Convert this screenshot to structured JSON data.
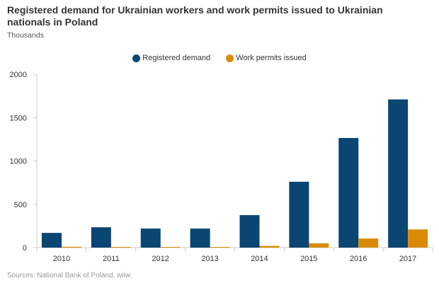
{
  "title": "Registered demand for Ukrainian workers and work permits issued to Ukrainian nationals in Poland",
  "subtitle": "Thousands",
  "source": "Sources: National Bank of Poland, wiiw.",
  "colors": {
    "registered_demand": "#0b4572",
    "work_permits": "#d98b07"
  },
  "chart_data": {
    "type": "bar",
    "categories": [
      "2010",
      "2011",
      "2012",
      "2013",
      "2014",
      "2015",
      "2016",
      "2017"
    ],
    "series": [
      {
        "name": "Registered demand",
        "values": [
          170,
          235,
          220,
          220,
          375,
          760,
          1265,
          1710
        ]
      },
      {
        "name": "Work permits issued",
        "values": [
          10,
          8,
          8,
          8,
          20,
          50,
          105,
          210
        ]
      }
    ],
    "ylim": [
      0,
      2000
    ],
    "yticks": [
      "0",
      "500",
      "1000",
      "1500",
      "2000"
    ],
    "legend_position": "top-center",
    "grid": false
  }
}
